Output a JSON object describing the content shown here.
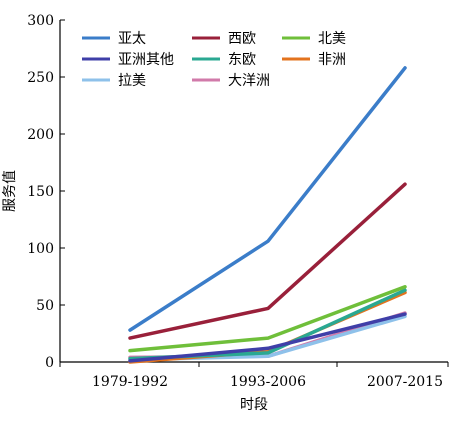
{
  "chart_data": {
    "type": "line",
    "title": "",
    "xlabel": "时段",
    "ylabel": "服务值",
    "categories": [
      "1979-1992",
      "1993-2006",
      "2007-2015"
    ],
    "ylim": [
      0,
      300
    ],
    "yticks": [
      0,
      50,
      100,
      150,
      200,
      250,
      300
    ],
    "grid": false,
    "legend_position": "top-left",
    "series": [
      {
        "name": "亚太",
        "color": "#3b7dc9",
        "values": [
          28,
          106,
          258
        ]
      },
      {
        "name": "西欧",
        "color": "#99203a",
        "values": [
          21,
          47,
          156
        ]
      },
      {
        "name": "北美",
        "color": "#6fbf3a",
        "values": [
          10,
          21,
          66
        ]
      },
      {
        "name": "亚洲其他",
        "color": "#3f3fa8",
        "values": [
          1,
          12,
          42
        ]
      },
      {
        "name": "东欧",
        "color": "#2aa892",
        "values": [
          3,
          8,
          63
        ]
      },
      {
        "name": "非洲",
        "color": "#e3731e",
        "values": [
          0,
          9,
          61
        ]
      },
      {
        "name": "拉美",
        "color": "#8ec1ea",
        "values": [
          2,
          5,
          40
        ]
      },
      {
        "name": "大洋洲",
        "color": "#d17aaa",
        "values": [
          4,
          5,
          43
        ]
      }
    ]
  }
}
